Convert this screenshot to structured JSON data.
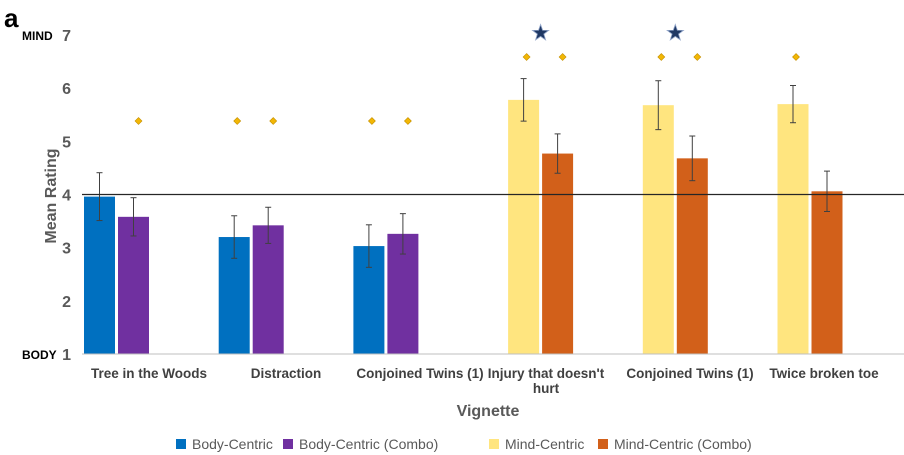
{
  "panel_label": "a",
  "chart_data": {
    "type": "bar",
    "xlabel": "Vignette",
    "ylabel": "Mean Rating",
    "ylim": [
      1,
      7
    ],
    "yticks": [
      1,
      2,
      3,
      4,
      5,
      6,
      7
    ],
    "y_anchor_top": "MIND",
    "y_anchor_bottom": "BODY",
    "reference_line": 4,
    "grid": false,
    "legend_position": "bottom",
    "categories": [
      [
        "Tree in the Woods"
      ],
      [
        "Distraction"
      ],
      [
        "Conjoined Twins (1)"
      ],
      [
        "Injury that doesn't",
        "hurt"
      ],
      [
        "Conjoined Twins (1)"
      ],
      [
        "Twice broken toe"
      ]
    ],
    "series": [
      {
        "name": "Body-Centric",
        "color": "#0070C0",
        "values": [
          3.96,
          3.2,
          3.03,
          null,
          null,
          null
        ],
        "errors": [
          0.45,
          0.4,
          0.4,
          null,
          null,
          null
        ]
      },
      {
        "name": "Body-Centric (Combo)",
        "color": "#7030A0",
        "values": [
          3.58,
          3.42,
          3.26,
          null,
          null,
          null
        ],
        "errors": [
          0.36,
          0.34,
          0.38,
          null,
          null,
          null
        ]
      },
      {
        "name": "Mind-Centric",
        "color": "#FFE57F",
        "values": [
          null,
          null,
          null,
          5.78,
          5.68,
          5.7
        ],
        "errors": [
          null,
          null,
          null,
          0.4,
          0.46,
          0.35
        ]
      },
      {
        "name": "Mind-Centric (Combo)",
        "color": "#D2601A",
        "values": [
          null,
          null,
          null,
          4.77,
          4.68,
          4.06
        ],
        "errors": [
          null,
          null,
          null,
          0.37,
          0.42,
          0.38
        ]
      }
    ],
    "significance_diamonds": [
      [
        false,
        true,
        false,
        false
      ],
      [
        true,
        true,
        false,
        false
      ],
      [
        true,
        true,
        false,
        false
      ],
      [
        false,
        false,
        true,
        true
      ],
      [
        false,
        false,
        true,
        true
      ],
      [
        false,
        false,
        true,
        false
      ]
    ],
    "diamond_color": "#F2B705",
    "stars": [
      3,
      4
    ],
    "star_color": "#1F3864"
  }
}
